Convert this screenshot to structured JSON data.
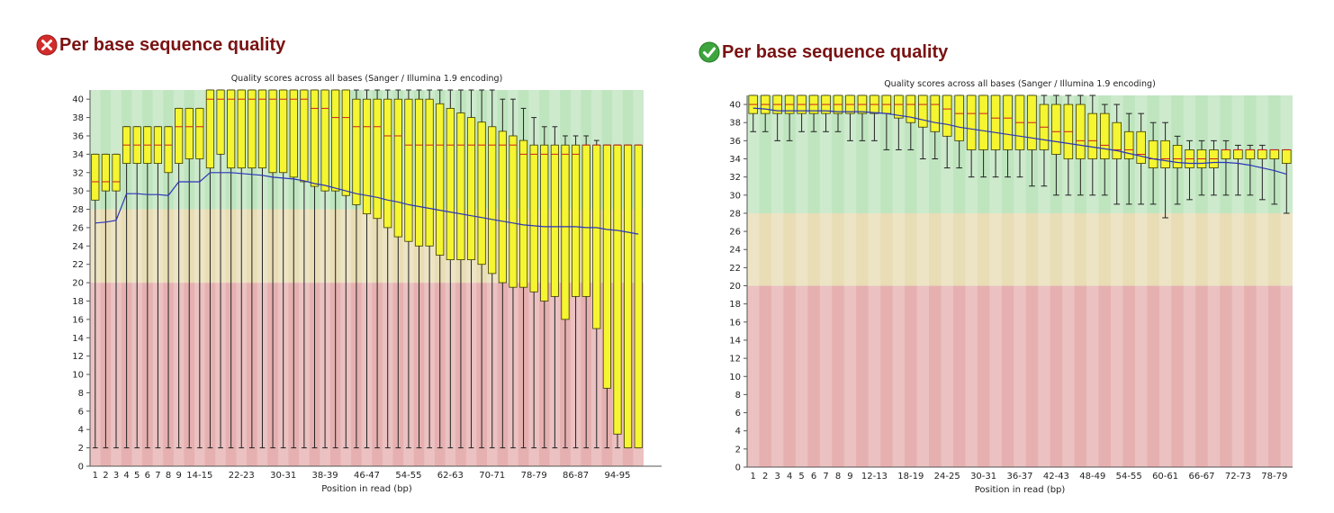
{
  "panels": [
    {
      "status": "fail",
      "status_icon": "error-x-icon",
      "heading": "Per base sequence quality",
      "chart_data": {
        "type": "box",
        "title": "Quality scores across all bases (Sanger / Illumina 1.9 encoding)",
        "xlabel": "Position in read (bp)",
        "ylabel": "",
        "ylim": [
          0,
          41
        ],
        "yticks": [
          0,
          2,
          4,
          6,
          8,
          10,
          12,
          14,
          16,
          18,
          20,
          22,
          24,
          26,
          28,
          30,
          32,
          34,
          36,
          38,
          40
        ],
        "zones": [
          {
            "from": 0,
            "to": 20,
            "color": "#e6b0b0"
          },
          {
            "from": 20,
            "to": 28,
            "color": "#e8ddb5"
          },
          {
            "from": 28,
            "to": 41,
            "color": "#bfe5bf"
          }
        ],
        "x_tick_labels": [
          "1",
          "2",
          "3",
          "4",
          "5",
          "6",
          "7",
          "8",
          "9",
          "14-15",
          "22-23",
          "30-31",
          "38-39",
          "46-47",
          "54-55",
          "62-63",
          "70-71",
          "78-79",
          "86-87",
          "94-95"
        ],
        "x_tick_index": [
          0,
          1,
          2,
          3,
          4,
          5,
          6,
          7,
          8,
          10,
          14,
          18,
          22,
          26,
          30,
          34,
          38,
          42,
          46,
          50
        ],
        "positions": 53,
        "q1": [
          29,
          30,
          30,
          33,
          33,
          33,
          33,
          32,
          33,
          33.5,
          33.5,
          32.5,
          34,
          32.5,
          32.5,
          32.5,
          32.5,
          32,
          32,
          31.5,
          31,
          30.5,
          30,
          30,
          29.5,
          28.5,
          27.5,
          27,
          26,
          25,
          24.5,
          24,
          24,
          23,
          22.5,
          22.5,
          22.5,
          22,
          21,
          20,
          19.5,
          19.5,
          19,
          18,
          18.5,
          16,
          18.5,
          18.5,
          15,
          8.5,
          3.5,
          2,
          2
        ],
        "median": [
          31,
          31,
          31,
          35,
          35,
          35,
          35,
          35,
          37,
          37,
          37,
          40,
          40,
          40,
          40,
          40,
          40,
          40,
          40,
          40,
          40,
          39,
          39,
          38,
          38,
          37,
          37,
          37,
          36,
          36,
          35,
          35,
          35,
          35,
          35,
          35,
          35,
          35,
          35,
          35,
          35,
          34,
          34,
          34,
          34,
          34,
          34,
          35,
          35,
          35,
          35,
          35,
          35
        ],
        "q3": [
          34,
          34,
          34,
          37,
          37,
          37,
          37,
          37,
          39,
          39,
          39,
          41,
          41,
          41,
          41,
          41,
          41,
          41,
          41,
          41,
          41,
          41,
          41,
          41,
          41,
          40,
          40,
          40,
          40,
          40,
          40,
          40,
          40,
          39.5,
          39,
          38.5,
          38,
          37.5,
          37,
          36.5,
          36,
          35.5,
          35,
          35,
          35,
          35,
          35,
          35,
          35,
          35,
          35,
          35,
          35
        ],
        "whisker_low": [
          2,
          2,
          2,
          2,
          2,
          2,
          2,
          2,
          2,
          2,
          2,
          2,
          2,
          2,
          2,
          2,
          2,
          2,
          2,
          2,
          2,
          2,
          2,
          2,
          2,
          2,
          2,
          2,
          2,
          2,
          2,
          2,
          2,
          2,
          2,
          2,
          2,
          2,
          2,
          2,
          2,
          2,
          2,
          2,
          2,
          2,
          2,
          2,
          2,
          2,
          2,
          2,
          2
        ],
        "whisker_high": [
          34,
          34,
          34,
          37,
          37,
          37,
          37,
          37,
          39,
          39,
          39,
          41,
          41,
          41,
          41,
          41,
          41,
          41,
          41,
          41,
          41,
          41,
          41,
          41,
          41,
          41,
          41,
          41,
          41,
          41,
          41,
          41,
          41,
          41,
          41,
          41,
          41,
          41,
          41,
          40,
          40,
          39,
          38,
          37,
          37,
          36,
          36,
          36,
          35.5,
          35,
          35,
          35,
          35
        ],
        "mean": [
          26.5,
          26.6,
          26.8,
          29.7,
          29.7,
          29.6,
          29.6,
          29.5,
          31,
          31,
          31,
          32,
          32,
          32,
          31.9,
          31.8,
          31.7,
          31.5,
          31.4,
          31.3,
          31.1,
          30.8,
          30.6,
          30.3,
          30,
          29.7,
          29.5,
          29.3,
          29,
          28.8,
          28.5,
          28.3,
          28.1,
          27.9,
          27.7,
          27.5,
          27.3,
          27.1,
          26.9,
          26.7,
          26.5,
          26.3,
          26.2,
          26.1,
          26.1,
          26.1,
          26.1,
          26,
          26,
          25.8,
          25.7,
          25.5,
          25.3
        ]
      }
    },
    {
      "status": "pass",
      "status_icon": "check-circle-icon",
      "heading": "Per base sequence quality",
      "chart_data": {
        "type": "box",
        "title": "Quality scores across all bases (Sanger / Illumina 1.9 encoding)",
        "xlabel": "Position in read (bp)",
        "ylabel": "",
        "ylim": [
          0,
          41
        ],
        "yticks": [
          0,
          2,
          4,
          6,
          8,
          10,
          12,
          14,
          16,
          18,
          20,
          22,
          24,
          26,
          28,
          30,
          32,
          34,
          36,
          38,
          40
        ],
        "zones": [
          {
            "from": 0,
            "to": 20,
            "color": "#e6b0b0"
          },
          {
            "from": 20,
            "to": 28,
            "color": "#e8ddb5"
          },
          {
            "from": 28,
            "to": 41,
            "color": "#bfe5bf"
          }
        ],
        "x_tick_labels": [
          "1",
          "2",
          "3",
          "4",
          "5",
          "6",
          "7",
          "8",
          "9",
          "12-13",
          "18-19",
          "24-25",
          "30-31",
          "36-37",
          "42-43",
          "48-49",
          "54-55",
          "60-61",
          "66-67",
          "72-73",
          "78-79"
        ],
        "x_tick_index": [
          0,
          1,
          2,
          3,
          4,
          5,
          6,
          7,
          8,
          10,
          13,
          16,
          19,
          22,
          25,
          28,
          31,
          34,
          37,
          40,
          43
        ],
        "positions": 45,
        "q1": [
          39,
          39,
          39,
          39,
          39,
          39,
          39,
          39,
          39,
          39,
          39,
          39,
          38.5,
          38,
          37.5,
          37,
          36.5,
          36,
          35,
          35,
          35,
          35,
          35,
          35,
          35,
          34.5,
          34,
          34,
          34,
          34,
          34,
          34,
          33.5,
          33,
          33,
          33,
          33,
          33,
          33,
          34,
          34,
          34,
          34,
          34,
          33.5
        ],
        "median": [
          40,
          40,
          40,
          40,
          40,
          40,
          40,
          40,
          40,
          40,
          40,
          40,
          40,
          40,
          40,
          40,
          39.5,
          39,
          39,
          39,
          38.5,
          38.5,
          38,
          38,
          37.5,
          37,
          37,
          36,
          36,
          35.5,
          35,
          35,
          34.5,
          34,
          34,
          34,
          34,
          34,
          34,
          35,
          35,
          35,
          35,
          35,
          35
        ],
        "q3": [
          41,
          41,
          41,
          41,
          41,
          41,
          41,
          41,
          41,
          41,
          41,
          41,
          41,
          41,
          41,
          41,
          41,
          41,
          41,
          41,
          41,
          41,
          41,
          41,
          40,
          40,
          40,
          40,
          39,
          39,
          38,
          37,
          37,
          36,
          36,
          35.5,
          35,
          35,
          35,
          35,
          35,
          35,
          35,
          35,
          35
        ],
        "whisker_low": [
          37,
          37,
          36,
          36,
          37,
          37,
          37,
          37,
          36,
          36,
          36,
          35,
          35,
          35,
          34,
          34,
          33,
          33,
          32,
          32,
          32,
          32,
          32,
          31,
          31,
          30,
          30,
          30,
          30,
          30,
          29,
          29,
          29,
          29,
          27.5,
          29,
          29.5,
          30,
          30,
          30,
          30,
          30,
          29.5,
          29,
          28
        ],
        "whisker_high": [
          41,
          41,
          41,
          41,
          41,
          41,
          41,
          41,
          41,
          41,
          41,
          41,
          41,
          41,
          41,
          41,
          41,
          41,
          41,
          41,
          41,
          41,
          41,
          41,
          41,
          41,
          41,
          41,
          41,
          40,
          40,
          39,
          39,
          38,
          38,
          36.5,
          36,
          36,
          36,
          36,
          35.5,
          35.5,
          35.5,
          35,
          35
        ],
        "mean": [
          39.6,
          39.5,
          39.3,
          39.3,
          39.3,
          39.3,
          39.3,
          39.2,
          39.2,
          39.2,
          39.1,
          39,
          38.8,
          38.6,
          38.3,
          38,
          37.8,
          37.5,
          37.3,
          37.1,
          36.9,
          36.7,
          36.5,
          36.3,
          36.1,
          35.9,
          35.7,
          35.5,
          35.3,
          35.1,
          34.9,
          34.6,
          34.3,
          34,
          33.8,
          33.6,
          33.5,
          33.5,
          33.6,
          33.6,
          33.5,
          33.3,
          33,
          32.7,
          32.3
        ]
      }
    }
  ],
  "colors": {
    "box_fill": "#f5f531",
    "box_stroke": "#3b3b00",
    "median": "#cc1f1f",
    "mean": "#2c35b8",
    "whisker": "#222222",
    "heading": "#7a1212",
    "fail_icon": "#d32b2b",
    "pass_icon": "#3ea53e"
  }
}
